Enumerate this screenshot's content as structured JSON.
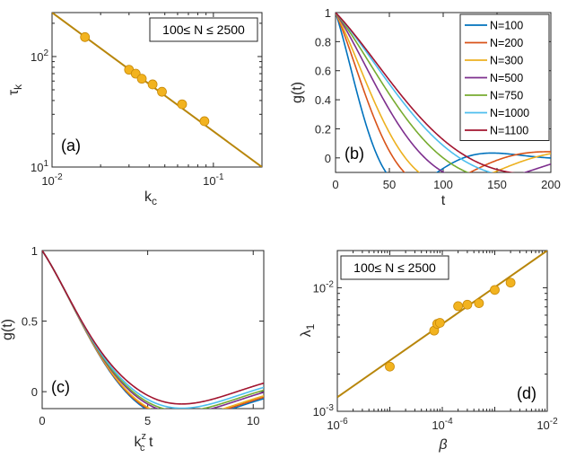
{
  "chart_data": [
    {
      "type": "scatter",
      "panel_label": "(a)",
      "xlabel": "k",
      "xlabel_sub": "c",
      "ylabel": "τ",
      "ylabel_sub": "k",
      "xscale": "log",
      "yscale": "log",
      "xlim": [
        0.01,
        0.2
      ],
      "ylim": [
        10,
        250
      ],
      "xticks": [
        {
          "v": 0.01,
          "b": "10",
          "e": "-2"
        },
        {
          "v": 0.1,
          "b": "10",
          "e": "-1"
        }
      ],
      "yticks": [
        {
          "v": 10,
          "b": "10",
          "e": "1"
        },
        {
          "v": 100,
          "b": "10",
          "e": "2"
        }
      ],
      "annotation": "100≤ N ≤ 2500",
      "points": [
        [
          0.016,
          150
        ],
        [
          0.03,
          76
        ],
        [
          0.033,
          70
        ],
        [
          0.036,
          63
        ],
        [
          0.042,
          56
        ],
        [
          0.048,
          48
        ],
        [
          0.064,
          37
        ],
        [
          0.088,
          26
        ]
      ],
      "fit_line": [
        [
          0.01,
          250
        ],
        [
          0.2,
          10
        ]
      ],
      "colors": {
        "fit": "#b8860b",
        "point": "#f2b31f",
        "edge": "#c88a0a"
      }
    },
    {
      "type": "line",
      "panel_label": "(b)",
      "xlabel": "t",
      "ylabel": "g(t)",
      "xlim": [
        0,
        200
      ],
      "ylim": [
        -0.1,
        1.0
      ],
      "xticks": [
        0,
        50,
        100,
        150,
        200
      ],
      "yticks": [
        0,
        0.2,
        0.4,
        0.6,
        0.8,
        1
      ],
      "legend_position": "top-right",
      "series": [
        {
          "name": "N=100",
          "color": "#0072bd",
          "tau": 17.4
        },
        {
          "name": "N=200",
          "color": "#d95319",
          "tau": 23.5
        },
        {
          "name": "N=300",
          "color": "#edb120",
          "tau": 28.2
        },
        {
          "name": "N=500",
          "color": "#7e2f8e",
          "tau": 35.6
        },
        {
          "name": "N=750",
          "color": "#77ac30",
          "tau": 42.5
        },
        {
          "name": "N=1000",
          "color": "#4dbeee",
          "tau": 48.4
        },
        {
          "name": "N=1100",
          "color": "#a2142f",
          "tau": 51.0
        }
      ]
    },
    {
      "type": "line",
      "panel_label": "(c)",
      "xlabel": "k",
      "xlabel_sub": "c",
      "xlabel_sup": "z",
      "xlabel_tail": " t",
      "ylabel": "g(t)",
      "xlim": [
        0,
        10.5
      ],
      "ylim": [
        -0.12,
        1.0
      ],
      "xticks": [
        0,
        5,
        10
      ],
      "yticks": [
        0,
        0.5,
        1
      ],
      "series": [
        {
          "name": "N=100",
          "color": "#0072bd",
          "tau": 1.74
        },
        {
          "name": "N=200",
          "color": "#d95319",
          "tau": 1.74
        },
        {
          "name": "N=300",
          "color": "#edb120",
          "tau": 1.74
        },
        {
          "name": "N=500",
          "color": "#7e2f8e",
          "tau": 1.74
        },
        {
          "name": "N=750",
          "color": "#77ac30",
          "tau": 1.74
        },
        {
          "name": "N=1000",
          "color": "#4dbeee",
          "tau": 1.74
        },
        {
          "name": "N=1100",
          "color": "#a2142f",
          "tau": 1.74
        }
      ]
    },
    {
      "type": "scatter",
      "panel_label": "(d)",
      "xlabel": "β",
      "ylabel": "λ",
      "ylabel_sub": "1",
      "xscale": "log",
      "yscale": "log",
      "xlim": [
        1e-06,
        0.01
      ],
      "ylim": [
        0.001,
        0.02
      ],
      "xticks": [
        {
          "v": 1e-06,
          "b": "10",
          "e": "-6"
        },
        {
          "v": 0.0001,
          "b": "10",
          "e": "-4"
        },
        {
          "v": 0.01,
          "b": "10",
          "e": "-2"
        }
      ],
      "yticks": [
        {
          "v": 0.001,
          "b": "10",
          "e": "-3"
        },
        {
          "v": 0.01,
          "b": "10",
          "e": "-2"
        }
      ],
      "annotation": "100≤ N ≤ 2500",
      "points": [
        [
          1e-05,
          0.0023
        ],
        [
          7e-05,
          0.0045
        ],
        [
          8e-05,
          0.0051
        ],
        [
          9e-05,
          0.0052
        ],
        [
          0.0002,
          0.0071
        ],
        [
          0.0003,
          0.0073
        ],
        [
          0.0005,
          0.0075
        ],
        [
          0.001,
          0.0096
        ],
        [
          0.002,
          0.011
        ]
      ],
      "fit_line": [
        [
          1e-06,
          0.0013
        ],
        [
          0.01,
          0.02
        ]
      ],
      "colors": {
        "fit": "#b8860b",
        "point": "#f2b31f",
        "edge": "#c88a0a"
      }
    }
  ]
}
